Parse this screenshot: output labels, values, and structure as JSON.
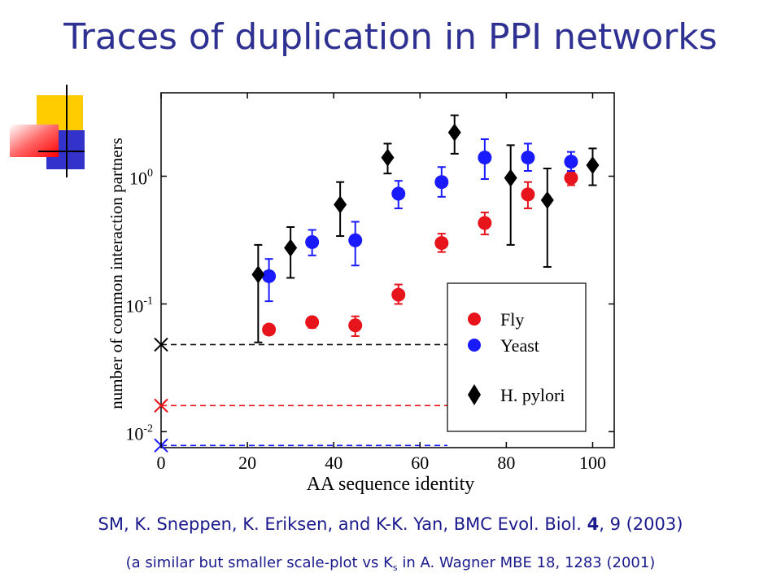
{
  "slide": {
    "title": "Traces of duplication in PPI networks",
    "citation_part1": "SM, K. Sneppen, K. Eriksen, and K-K. Yan,  BMC Evol. Biol. ",
    "citation_bold": "4",
    "citation_part2": ", 9 (2003)",
    "note_part1": "(a similar but smaller scale-plot vs K",
    "note_sub": "s",
    "note_part2": " in A. Wagner MBE 18, 1283 (2001)"
  },
  "colors": {
    "title": "#2e3192",
    "fly": "#e8141c",
    "yeast": "#1a1aff",
    "hpylori": "#000000",
    "citation": "#1a1a8c"
  },
  "chart_data": {
    "type": "scatter",
    "xlabel": "AA sequence identity",
    "ylabel": "number of common interaction partners",
    "xlim": [
      0,
      105
    ],
    "ylim": [
      0.0075,
      4.5
    ],
    "yscale": "log",
    "xticks": [
      0,
      20,
      40,
      60,
      80,
      100
    ],
    "yticks": [
      {
        "value": 0.01,
        "base": "10",
        "exp": "-2"
      },
      {
        "value": 0.1,
        "base": "10",
        "exp": "-1"
      },
      {
        "value": 1,
        "base": "10",
        "exp": "0"
      }
    ],
    "legend_position": "bottom-right",
    "series": [
      {
        "name": "Fly",
        "marker": "circle",
        "color": "#e8141c",
        "points": [
          {
            "x": 25,
            "y": 0.063,
            "lo": 0.058,
            "hi": 0.068
          },
          {
            "x": 35,
            "y": 0.072,
            "lo": 0.065,
            "hi": 0.079
          },
          {
            "x": 45,
            "y": 0.068,
            "lo": 0.056,
            "hi": 0.08
          },
          {
            "x": 55,
            "y": 0.118,
            "lo": 0.1,
            "hi": 0.142
          },
          {
            "x": 65,
            "y": 0.3,
            "lo": 0.255,
            "hi": 0.355
          },
          {
            "x": 75,
            "y": 0.43,
            "lo": 0.35,
            "hi": 0.52
          },
          {
            "x": 85,
            "y": 0.72,
            "lo": 0.56,
            "hi": 0.9
          },
          {
            "x": 95,
            "y": 0.97,
            "lo": 0.85,
            "hi": 1.08
          }
        ]
      },
      {
        "name": "Yeast",
        "marker": "circle",
        "color": "#1a1aff",
        "points": [
          {
            "x": 25,
            "y": 0.165,
            "lo": 0.105,
            "hi": 0.225
          },
          {
            "x": 35,
            "y": 0.305,
            "lo": 0.24,
            "hi": 0.38
          },
          {
            "x": 45,
            "y": 0.315,
            "lo": 0.2,
            "hi": 0.44
          },
          {
            "x": 55,
            "y": 0.73,
            "lo": 0.56,
            "hi": 0.92
          },
          {
            "x": 65,
            "y": 0.9,
            "lo": 0.69,
            "hi": 1.18
          },
          {
            "x": 75,
            "y": 1.4,
            "lo": 0.95,
            "hi": 1.95
          },
          {
            "x": 85,
            "y": 1.4,
            "lo": 1.1,
            "hi": 1.8
          },
          {
            "x": 95,
            "y": 1.3,
            "lo": 1.1,
            "hi": 1.55
          }
        ]
      },
      {
        "name": "H. pylori",
        "marker": "diamond",
        "color": "#000000",
        "points": [
          {
            "x": 22.5,
            "y": 0.17,
            "lo": 0.05,
            "hi": 0.29
          },
          {
            "x": 30,
            "y": 0.275,
            "lo": 0.16,
            "hi": 0.4
          },
          {
            "x": 41.5,
            "y": 0.6,
            "lo": 0.34,
            "hi": 0.9
          },
          {
            "x": 52.5,
            "y": 1.4,
            "lo": 1.05,
            "hi": 1.8
          },
          {
            "x": 68,
            "y": 2.2,
            "lo": 1.5,
            "hi": 3.0
          },
          {
            "x": 81,
            "y": 0.97,
            "lo": 0.29,
            "hi": 1.75
          },
          {
            "x": 89.5,
            "y": 0.65,
            "lo": 0.195,
            "hi": 1.15
          },
          {
            "x": 100,
            "y": 1.22,
            "lo": 0.85,
            "hi": 1.65
          }
        ]
      }
    ],
    "reference_lines": [
      {
        "series": "H. pylori",
        "y": 0.048,
        "color": "#000000"
      },
      {
        "series": "Fly",
        "y": 0.016,
        "color": "#e8141c"
      },
      {
        "series": "Yeast",
        "y": 0.0078,
        "color": "#1a1aff"
      }
    ]
  }
}
